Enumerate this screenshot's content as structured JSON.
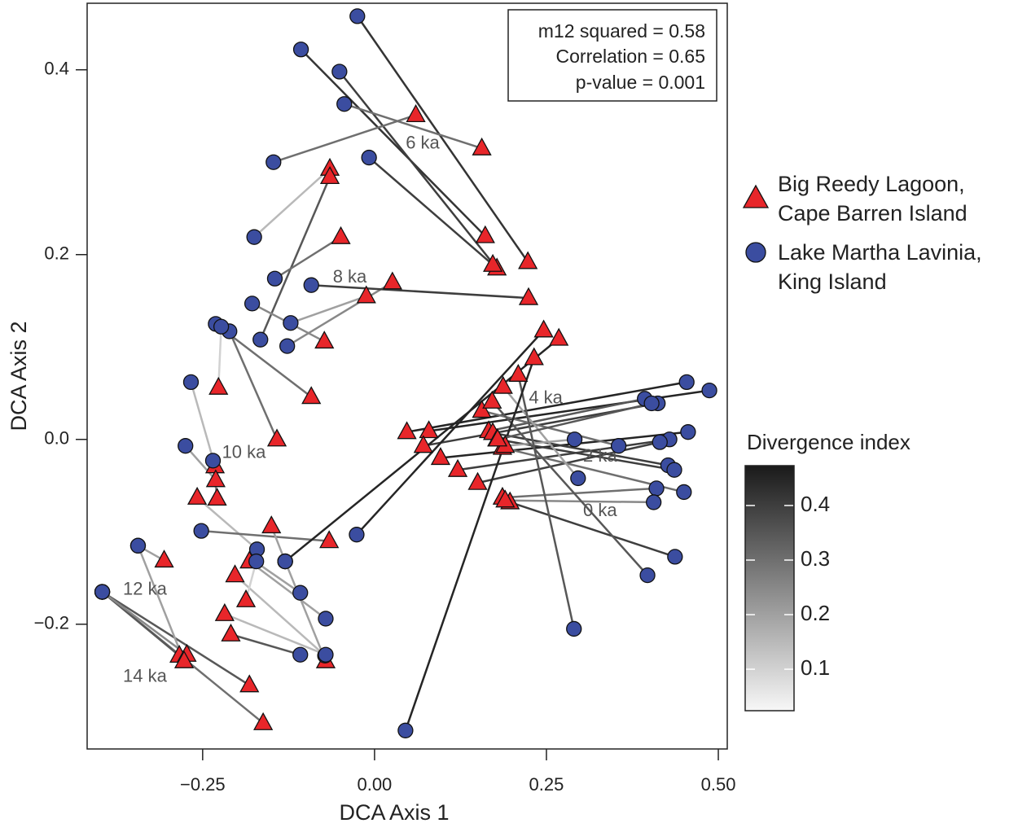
{
  "chart_data": {
    "type": "procrustes",
    "xlabel": "DCA Axis 1",
    "ylabel": "DCA Axis 2",
    "xlim": [
      -0.418,
      0.513
    ],
    "ylim": [
      -0.335,
      0.472
    ],
    "xticks": [
      {
        "value": -0.25,
        "label": "−0.25"
      },
      {
        "value": 0,
        "label": "0.00"
      },
      {
        "value": 0.25,
        "label": "0.25"
      },
      {
        "value": 0.5,
        "label": "0.50"
      }
    ],
    "yticks": [
      {
        "value": -0.2,
        "label": "−0.2"
      },
      {
        "value": 0,
        "label": "0.0"
      },
      0.2,
      0.4
    ],
    "stats": [
      "m12 squared = 0.58",
      "Correlation = 0.65",
      "p-value = 0.001"
    ],
    "annotations": [
      {
        "text": "6 ka",
        "x": 0.07,
        "y": 0.32
      },
      {
        "text": "8 ka",
        "x": -0.036,
        "y": 0.175
      },
      {
        "text": "10 ka",
        "x": -0.19,
        "y": -0.015
      },
      {
        "text": "12 ka",
        "x": -0.334,
        "y": -0.163
      },
      {
        "text": "14 ka",
        "x": -0.334,
        "y": -0.257
      },
      {
        "text": "4 ka",
        "x": 0.249,
        "y": 0.044
      },
      {
        "text": "2 ka",
        "x": 0.328,
        "y": -0.019
      },
      {
        "text": "0 ka",
        "x": 0.328,
        "y": -0.078
      }
    ],
    "series": [
      {
        "name": "Big Reedy Lagoon, Cape Barren Island",
        "color": "#e8262a",
        "marker": "triangle",
        "x": [
          0.223,
          0.161,
          0.178,
          0.172,
          0.06,
          0.156,
          -0.065,
          -0.065,
          -0.049,
          0.026,
          -0.012,
          0.224,
          -0.073,
          -0.092,
          -0.142,
          -0.227,
          -0.232,
          -0.231,
          -0.229,
          -0.258,
          -0.066,
          -0.15,
          -0.178,
          -0.182,
          -0.203,
          -0.187,
          -0.218,
          -0.209,
          -0.071,
          -0.306,
          -0.182,
          -0.162,
          -0.284,
          -0.273,
          -0.277,
          0.047,
          0.079,
          0.071,
          0.096,
          0.121,
          0.15,
          0.166,
          0.156,
          0.172,
          0.178,
          0.186,
          0.19,
          0.186,
          0.197,
          0.19,
          0.187,
          0.171,
          0.209,
          0.232,
          0.246,
          0.268,
          0.179
        ],
        "y": [
          0.192,
          0.22,
          0.185,
          0.189,
          0.351,
          0.315,
          0.293,
          0.284,
          0.219,
          0.17,
          0.155,
          0.153,
          0.106,
          0.046,
          0.0,
          0.056,
          -0.029,
          -0.044,
          -0.064,
          -0.063,
          -0.11,
          -0.094,
          -0.13,
          -0.132,
          -0.147,
          -0.174,
          -0.189,
          -0.211,
          -0.24,
          -0.131,
          -0.266,
          -0.307,
          -0.234,
          -0.233,
          -0.24,
          0.008,
          0.009,
          -0.007,
          -0.02,
          -0.033,
          -0.047,
          0.009,
          0.031,
          0.007,
          0.0,
          -0.009,
          -0.007,
          -0.063,
          -0.068,
          -0.066,
          0.057,
          0.041,
          0.07,
          0.088,
          0.118,
          0.109,
          0.0
        ]
      },
      {
        "name": "Lake Martha Lavinia, King Island",
        "color": "#3b4da0",
        "marker": "circle",
        "x": [
          -0.025,
          -0.107,
          -0.051,
          -0.008,
          -0.147,
          -0.044,
          -0.175,
          -0.166,
          -0.145,
          -0.127,
          -0.122,
          -0.092,
          -0.178,
          -0.231,
          -0.211,
          -0.223,
          -0.267,
          -0.275,
          -0.235,
          -0.171,
          -0.252,
          -0.13,
          -0.108,
          -0.071,
          -0.072,
          -0.172,
          -0.071,
          -0.108,
          -0.13,
          -0.344,
          -0.396,
          -0.396,
          -0.396,
          -0.396,
          -0.344,
          0.454,
          0.487,
          0.412,
          0.456,
          0.429,
          0.415,
          0.393,
          0.355,
          0.427,
          0.436,
          0.45,
          0.291,
          0.41,
          0.437,
          0.406,
          0.296,
          0.397,
          0.29,
          0.045,
          -0.026,
          -0.13,
          0.403
        ],
        "y": [
          0.458,
          0.422,
          0.398,
          0.305,
          0.3,
          0.363,
          0.219,
          0.108,
          0.174,
          0.101,
          0.126,
          0.167,
          0.147,
          0.125,
          0.117,
          0.122,
          0.062,
          -0.007,
          -0.023,
          -0.119,
          -0.099,
          -0.132,
          -0.166,
          -0.194,
          -0.234,
          -0.132,
          -0.233,
          -0.233,
          -0.132,
          -0.115,
          -0.165,
          -0.165,
          -0.165,
          -0.165,
          -0.115,
          0.062,
          0.053,
          0.039,
          0.008,
          0.0,
          -0.003,
          0.044,
          -0.007,
          -0.028,
          -0.033,
          -0.057,
          0.0,
          -0.053,
          -0.127,
          -0.068,
          -0.042,
          -0.147,
          -0.205,
          -0.315,
          -0.103,
          -0.132,
          0.039
        ]
      }
    ],
    "divergence": [
      0.42,
      0.42,
      0.4,
      0.4,
      0.3,
      0.3,
      0.15,
      0.35,
      0.3,
      0.25,
      0.2,
      0.4,
      0.25,
      0.3,
      0.3,
      0.1,
      0.15,
      0.2,
      0.25,
      0.15,
      0.3,
      0.2,
      0.2,
      0.2,
      0.15,
      0.1,
      0.15,
      0.35,
      0.2,
      0.2,
      0.35,
      0.3,
      0.35,
      0.25,
      0.2,
      0.45,
      0.45,
      0.4,
      0.45,
      0.4,
      0.4,
      0.35,
      0.3,
      0.4,
      0.4,
      0.3,
      0.2,
      0.3,
      0.4,
      0.25,
      0.2,
      0.35,
      0.35,
      0.45,
      0.45,
      0.45,
      0.35
    ],
    "colorbar": {
      "title": "Divergence index",
      "lim": [
        0.024,
        0.473
      ],
      "ticks": [
        0.1,
        0.2,
        0.3,
        0.4
      ]
    }
  }
}
